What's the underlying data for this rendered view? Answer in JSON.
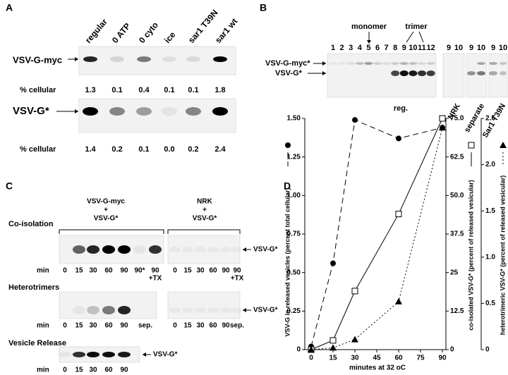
{
  "panels": {
    "a": {
      "label": "A",
      "columns": [
        "regular",
        "0 ATP",
        "0 cyto",
        "ice",
        "sar1 T39N",
        "sar1 wt"
      ],
      "rows": [
        {
          "label": "VSV-G-myc",
          "metric": "% cellular",
          "values": [
            "1.3",
            "0.1",
            "0.4",
            "0.1",
            "0.1",
            "1.8"
          ]
        },
        {
          "label": "VSV-G*",
          "metric": "% cellular",
          "values": [
            "1.4",
            "0.2",
            "0.1",
            "0.0",
            "0.2",
            "2.4"
          ]
        }
      ]
    },
    "b": {
      "label": "B",
      "monomer": "monomer",
      "trimer": "trimer",
      "lanes": [
        "1",
        "2",
        "3",
        "4",
        "5",
        "6",
        "7",
        "8",
        "9",
        "10",
        "11",
        "12"
      ],
      "lanes_nrk": [
        "9",
        "10"
      ],
      "lanes_separate": [
        "9",
        "10"
      ],
      "lanes_sar1": [
        "9",
        "10"
      ],
      "bands": [
        "VSV-G-myc*",
        "VSV-G*"
      ],
      "groups": [
        "reg.",
        "NRK",
        "separate",
        "Sar1 T39N"
      ]
    },
    "c": {
      "label": "C",
      "group_left": [
        "VSV-G-myc",
        "+",
        "VSV-G*"
      ],
      "group_right": [
        "NRK",
        "+",
        "VSV-G*"
      ],
      "sections": [
        {
          "title": "Co-isolation",
          "min": "min",
          "band": "VSV-G*",
          "lanes_left": [
            "0",
            "15",
            "30",
            "60",
            "90",
            "90*",
            "90"
          ],
          "tx_left": "+TX",
          "lanes_right": [
            "0",
            "15",
            "30",
            "60",
            "90",
            "90"
          ],
          "tx_right": "+TX"
        },
        {
          "title": "Heterotrimers",
          "min": "min",
          "band": "VSV-G*",
          "lanes_left": [
            "0",
            "15",
            "30",
            "60",
            "90",
            "sep."
          ],
          "lanes_right": [
            "0",
            "15",
            "30",
            "60",
            "90",
            "sep."
          ]
        },
        {
          "title": "Vesicle Release",
          "min": "min",
          "band": "VSV-G*",
          "lanes_left": [
            "0",
            "15",
            "30",
            "60",
            "90"
          ]
        }
      ]
    },
    "d": {
      "label": "D"
    }
  },
  "chart_data": {
    "type": "line",
    "x": [
      0,
      15,
      30,
      60,
      90
    ],
    "xlim": [
      0,
      90
    ],
    "xticks": [
      0,
      15,
      30,
      45,
      60,
      75,
      90
    ],
    "xlabel": "minutes at 32 oC",
    "ylabel": "VSV-G in released vesicles (percent total cellular)",
    "ylim": [
      0,
      1.5
    ],
    "yticks": [
      0,
      0.25,
      {
        "value": 0.5,
        "label": "0.50"
      },
      0.75,
      {
        "value": 1,
        "label": "1.00"
      },
      1.25,
      {
        "value": 1.5,
        "label": "1.50"
      }
    ],
    "y2label": "co-isolated VSV-G* (percent of released vesicular)",
    "y2lim": [
      0,
      75
    ],
    "y2ticks": [
      0,
      12.5,
      25,
      37.5,
      {
        "value": 50,
        "label": "50.0"
      },
      62.5,
      {
        "value": 75,
        "label": "75.0"
      }
    ],
    "y3label": "heterotrimeric VSV-G* (percent of released vesicular)",
    "y3lim": [
      0,
      2.5
    ],
    "y3ticks": [
      0,
      0.5,
      {
        "value": 1,
        "label": "1.0"
      },
      1.5,
      {
        "value": 2,
        "label": "2.0"
      },
      2.5
    ],
    "series": [
      {
        "axis": "y",
        "marker": "circle",
        "dash": "dashed",
        "color": "#000000",
        "values": [
          0.02,
          0.56,
          1.49,
          1.37,
          1.44
        ]
      },
      {
        "axis": "y2",
        "marker": "square",
        "dash": "solid",
        "color": "#000000",
        "values": [
          0,
          3,
          19,
          44,
          75
        ]
      },
      {
        "axis": "y3",
        "marker": "triangle",
        "dash": "dotted",
        "color": "#000000",
        "values": [
          0,
          0.02,
          0.11,
          0.52,
          2.4
        ]
      }
    ]
  }
}
